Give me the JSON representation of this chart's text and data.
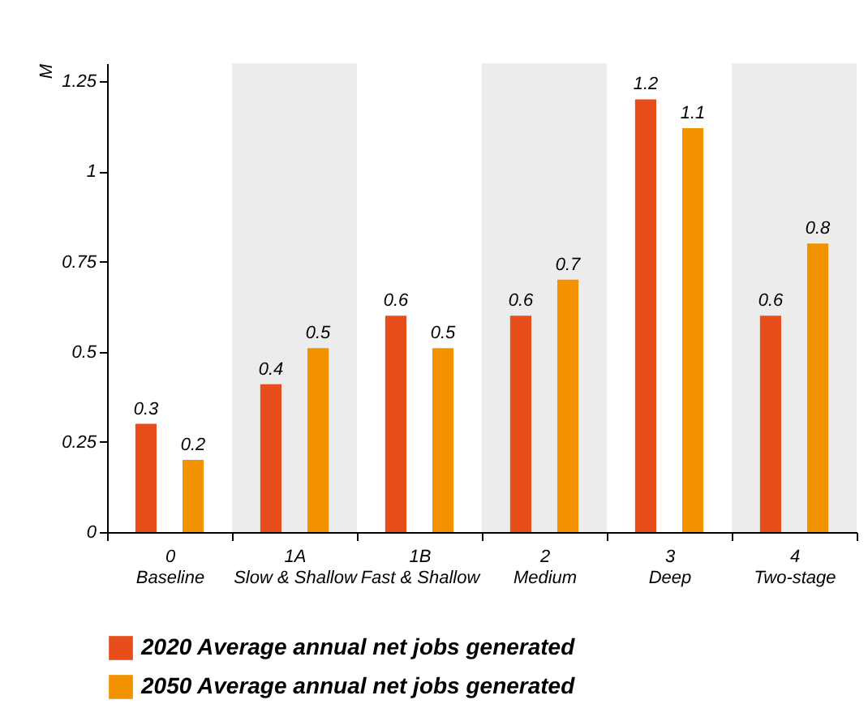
{
  "chart_data": {
    "type": "bar",
    "ylabel": "M",
    "categories": [
      "0\nBaseline",
      "1A\nSlow & Shallow",
      "1B\nFast & Shallow",
      "2\nMedium",
      "3\nDeep",
      "4\nTwo-stage"
    ],
    "series": [
      {
        "name": "2020 Average annual net  jobs generated",
        "color": "#e84e1b",
        "values": [
          0.3,
          0.41,
          0.6,
          0.6,
          1.2,
          0.6
        ],
        "value_labels": [
          "0.3",
          "0.4",
          "0.6",
          "0.6",
          "1.2",
          "0.6"
        ]
      },
      {
        "name": "2050 Average annual net  jobs generated",
        "color": "#f39200",
        "values": [
          0.2,
          0.51,
          0.51,
          0.7,
          1.12,
          0.8
        ],
        "value_labels": [
          "0.2",
          "0.5",
          "0.5",
          "0.7",
          "1.1",
          "0.8"
        ]
      }
    ],
    "ylim": [
      0,
      1.3
    ],
    "yticks": [
      0,
      0.25,
      0.5,
      0.75,
      1,
      1.25
    ],
    "bands": [
      {
        "axis": "x",
        "from": "1A\nSlow & Shallow",
        "to": "1A\nSlow & Shallow",
        "color": "#ececec"
      },
      {
        "axis": "x",
        "from": "2\nMedium",
        "to": "2\nMedium",
        "color": "#ececec"
      },
      {
        "axis": "x",
        "from": "4\nTwo-stage",
        "to": "4\nTwo-stage",
        "color": "#ececec"
      }
    ],
    "legend": "bottom"
  }
}
